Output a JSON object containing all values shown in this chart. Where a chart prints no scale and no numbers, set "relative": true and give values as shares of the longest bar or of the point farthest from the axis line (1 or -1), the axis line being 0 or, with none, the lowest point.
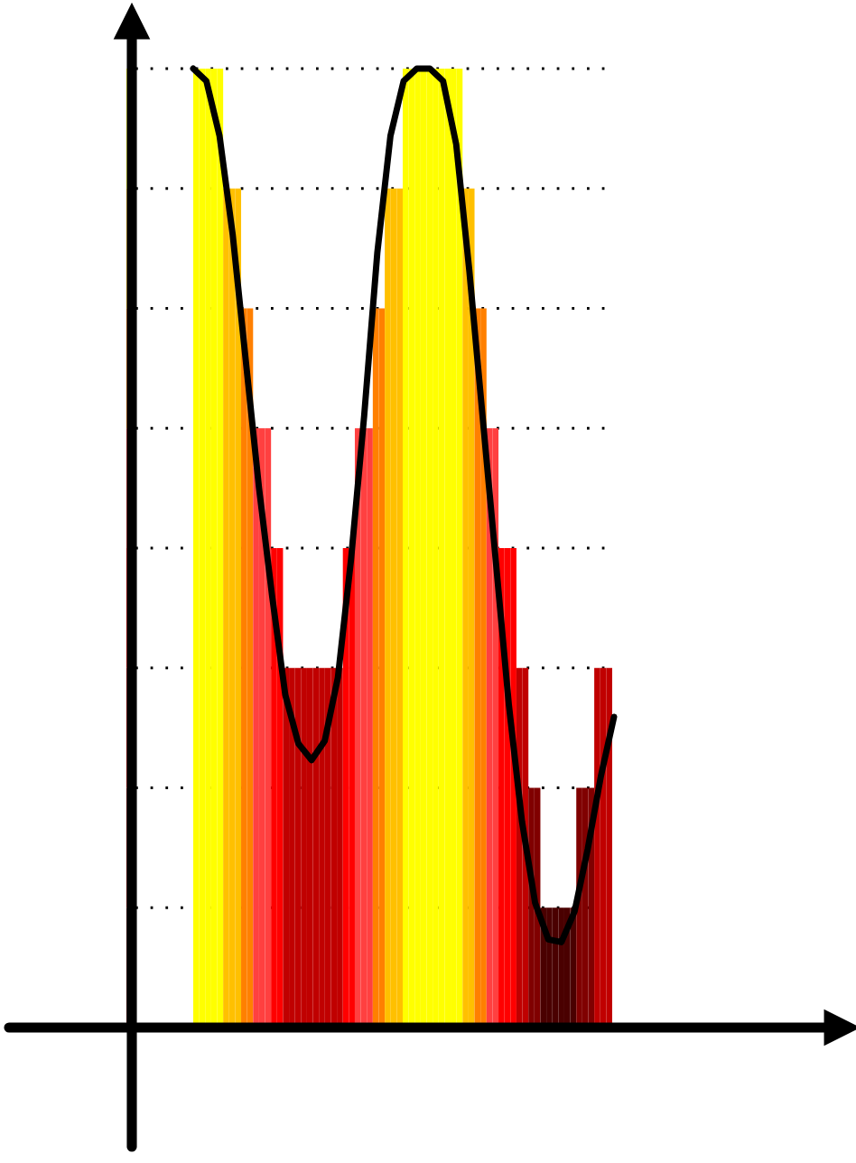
{
  "chart_data": [
    {
      "type": "bar",
      "relative": true,
      "grid": "y",
      "categories": [
        null,
        null,
        null,
        null,
        null,
        null,
        null,
        null,
        null,
        null,
        null,
        null,
        null,
        null,
        null,
        null,
        null,
        null,
        null,
        null,
        null,
        null,
        null,
        null,
        null,
        null,
        null,
        null,
        null,
        null,
        null,
        null,
        null,
        null,
        null,
        null,
        null,
        null,
        null,
        null,
        null,
        null,
        null,
        null,
        null,
        null,
        null,
        null,
        null,
        null,
        null,
        null,
        null,
        null,
        null,
        null,
        null,
        null,
        null,
        null,
        null,
        null,
        null,
        null,
        null,
        null,
        null,
        null,
        null,
        null
      ],
      "values": [
        1,
        1,
        1,
        1,
        1,
        0.875,
        0.875,
        0.875,
        0.75,
        0.75,
        0.625,
        0.625,
        0.625,
        0.5,
        0.5,
        0.375,
        0.375,
        0.375,
        0.375,
        0.375,
        0.375,
        0.375,
        0.375,
        0.375,
        0.375,
        0.5,
        0.5,
        0.625,
        0.625,
        0.625,
        0.75,
        0.75,
        0.875,
        0.875,
        0.875,
        1,
        1,
        1,
        1,
        1,
        1,
        1,
        1,
        1,
        1,
        0.875,
        0.875,
        0.75,
        0.75,
        0.625,
        0.625,
        0.5,
        0.5,
        0.5,
        0.375,
        0.375,
        0.25,
        0.25,
        0.125,
        0.125,
        0.125,
        0.125,
        0.125,
        0.125,
        0.25,
        0.25,
        0.25,
        0.375,
        0.375,
        0.375
      ],
      "colors": [
        "#ffff00",
        "#ffff00",
        "#ffff00",
        "#ffff00",
        "#ffff00",
        "#ffc000",
        "#ffc000",
        "#ffc000",
        "#ff8000",
        "#ff8000",
        "#ff4040",
        "#ff4040",
        "#ff4040",
        "#ff0000",
        "#ff0000",
        "#c00000",
        "#c00000",
        "#c00000",
        "#c00000",
        "#c00000",
        "#c00000",
        "#c00000",
        "#c00000",
        "#c00000",
        "#c00000",
        "#ff0000",
        "#ff0000",
        "#ff4040",
        "#ff4040",
        "#ff4040",
        "#ff8000",
        "#ff8000",
        "#ffc000",
        "#ffc000",
        "#ffc000",
        "#ffff00",
        "#ffff00",
        "#ffff00",
        "#ffff00",
        "#ffff00",
        "#ffff00",
        "#ffff00",
        "#ffff00",
        "#ffff00",
        "#ffff00",
        "#ffc000",
        "#ffc000",
        "#ff8000",
        "#ff8000",
        "#ff4040",
        "#ff4040",
        "#ff0000",
        "#ff0000",
        "#ff0000",
        "#c00000",
        "#c00000",
        "#800000",
        "#800000",
        "#4a0000",
        "#4a0000",
        "#4a0000",
        "#4a0000",
        "#4a0000",
        "#4a0000",
        "#800000",
        "#800000",
        "#800000",
        "#c00000",
        "#c00000",
        "#c00000"
      ]
    },
    {
      "type": "line",
      "relative": true,
      "categories": [
        null,
        null,
        null,
        null,
        null,
        null,
        null,
        null,
        null,
        null,
        null,
        null,
        null,
        null,
        null,
        null,
        null,
        null,
        null,
        null,
        null,
        null,
        null,
        null,
        null,
        null,
        null,
        null,
        null,
        null,
        null,
        null,
        null
      ],
      "series": [
        {
          "color": "#000000",
          "values": [
            1.0,
            0.987,
            0.93,
            0.827,
            0.695,
            0.563,
            0.45,
            0.347,
            0.296,
            0.279,
            0.299,
            0.365,
            0.488,
            0.638,
            0.808,
            0.93,
            0.987,
            1.0,
            1.0,
            0.987,
            0.921,
            0.789,
            0.638,
            0.488,
            0.337,
            0.215,
            0.13,
            0.092,
            0.089,
            0.121,
            0.186,
            0.262,
            0.324
          ]
        }
      ]
    }
  ]
}
